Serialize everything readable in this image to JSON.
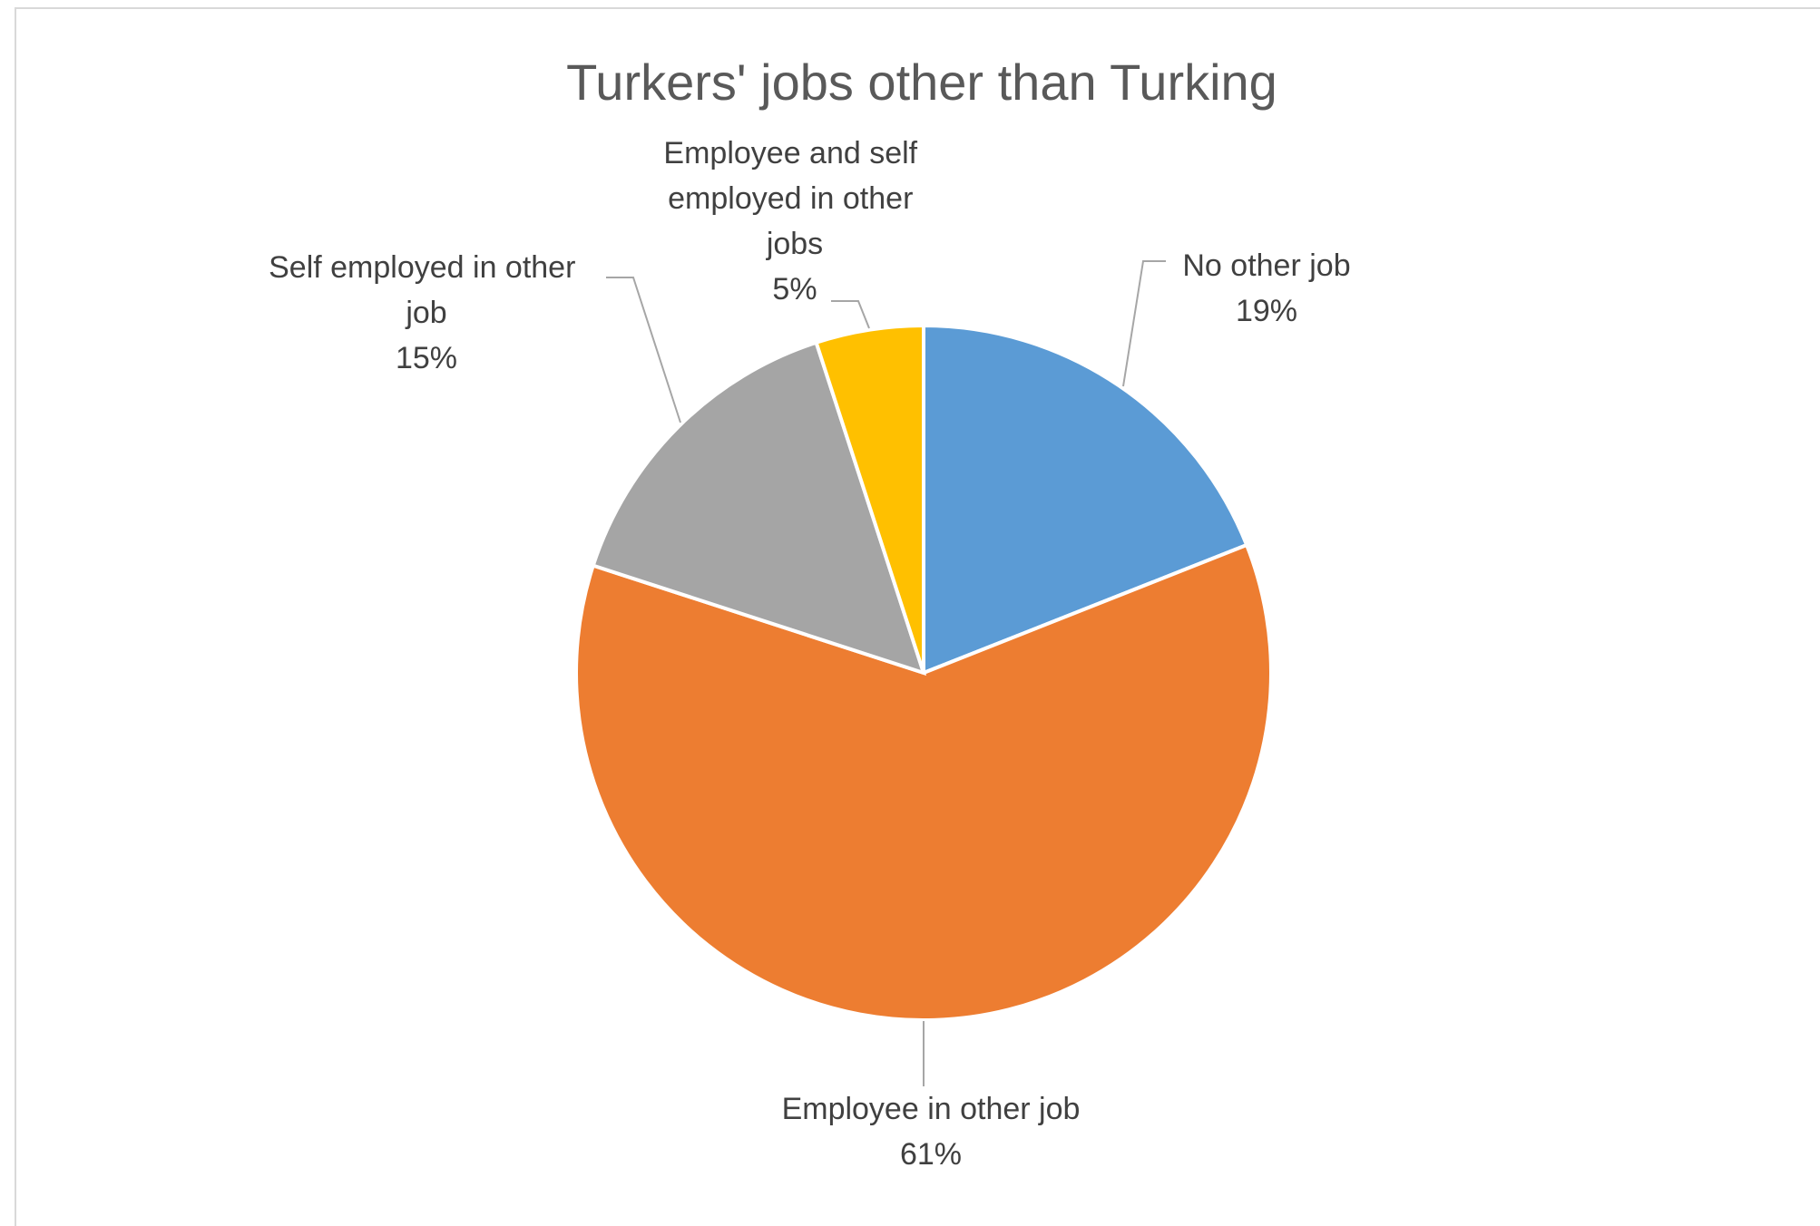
{
  "chart_data": {
    "type": "pie",
    "title": "Turkers' jobs other than Turking",
    "slices": [
      {
        "label_lines": [
          "No other job"
        ],
        "pct_text": "19%",
        "value": 19,
        "color": "#5B9BD5"
      },
      {
        "label_lines": [
          "Employee in other job"
        ],
        "pct_text": "61%",
        "value": 61,
        "color": "#ED7D31"
      },
      {
        "label_lines": [
          "Self employed in other",
          "job"
        ],
        "pct_text": "15%",
        "value": 15,
        "color": "#A5A5A5"
      },
      {
        "label_lines": [
          "Employee and self",
          "employed in other",
          "jobs"
        ],
        "pct_text": "5%",
        "value": 5,
        "color": "#FFC000"
      }
    ]
  }
}
